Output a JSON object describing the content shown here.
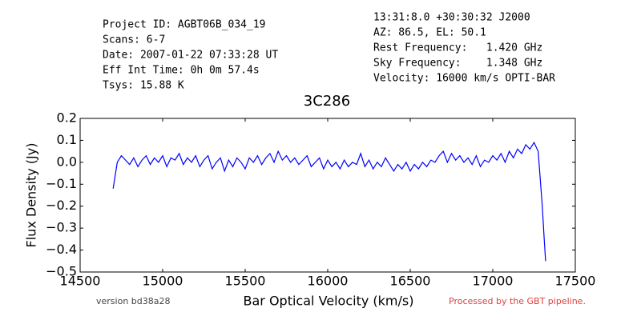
{
  "header": {
    "left": [
      "Project ID: AGBT06B_034_19",
      "Scans: 6-7",
      "Date: 2007-01-22 07:33:28 UT",
      "Eff Int Time: 0h 0m 57.4s",
      "Tsys: 15.88 K"
    ],
    "right": [
      "13:31:8.0 +30:30:32 J2000",
      "AZ: 86.5, EL: 50.1",
      "Rest Frequency:   1.420 GHz",
      "Sky Frequency:    1.348 GHz",
      "Velocity: 16000 km/s OPTI-BAR"
    ]
  },
  "footer": {
    "version": "version bd38a28",
    "pipeline": "Processed by the GBT pipeline."
  },
  "chart_data": {
    "type": "line",
    "title": "3C286",
    "x_label": "Bar Optical Velocity (km/s)",
    "y_label": "Flux Density (Jy)",
    "color": "#0000ff",
    "x": [
      14700,
      14725,
      14750,
      14775,
      14800,
      14825,
      14850,
      14875,
      14900,
      14925,
      14950,
      14975,
      15000,
      15025,
      15050,
      15075,
      15100,
      15125,
      15150,
      15175,
      15200,
      15225,
      15250,
      15275,
      15300,
      15325,
      15350,
      15375,
      15400,
      15425,
      15450,
      15475,
      15500,
      15525,
      15550,
      15575,
      15600,
      15625,
      15650,
      15675,
      15700,
      15725,
      15750,
      15775,
      15800,
      15825,
      15850,
      15875,
      15900,
      15925,
      15950,
      15975,
      16000,
      16025,
      16050,
      16075,
      16100,
      16125,
      16150,
      16175,
      16200,
      16225,
      16250,
      16275,
      16300,
      16325,
      16350,
      16375,
      16400,
      16425,
      16450,
      16475,
      16500,
      16525,
      16550,
      16575,
      16600,
      16625,
      16650,
      16675,
      16700,
      16725,
      16750,
      16775,
      16800,
      16825,
      16850,
      16875,
      16900,
      16925,
      16950,
      16975,
      17000,
      17025,
      17050,
      17075,
      17100,
      17125,
      17150,
      17175,
      17200,
      17225,
      17250,
      17275,
      17290,
      17300,
      17310,
      17320
    ],
    "values": [
      -0.12,
      0.0,
      0.03,
      0.01,
      -0.01,
      0.02,
      -0.02,
      0.01,
      0.03,
      -0.01,
      0.02,
      0.0,
      0.03,
      -0.02,
      0.02,
      0.01,
      0.04,
      -0.01,
      0.02,
      0.0,
      0.03,
      -0.02,
      0.01,
      0.03,
      -0.03,
      0.0,
      0.02,
      -0.04,
      0.01,
      -0.02,
      0.02,
      0.0,
      -0.03,
      0.02,
      0.0,
      0.03,
      -0.01,
      0.02,
      0.04,
      0.0,
      0.05,
      0.01,
      0.03,
      0.0,
      0.02,
      -0.01,
      0.01,
      0.03,
      -0.02,
      0.0,
      0.02,
      -0.03,
      0.01,
      -0.02,
      0.0,
      -0.03,
      0.01,
      -0.02,
      0.0,
      -0.01,
      0.04,
      -0.02,
      0.01,
      -0.03,
      0.0,
      -0.02,
      0.02,
      -0.01,
      -0.04,
      -0.01,
      -0.03,
      0.0,
      -0.04,
      -0.01,
      -0.03,
      0.0,
      -0.02,
      0.01,
      0.0,
      0.03,
      0.05,
      0.0,
      0.04,
      0.01,
      0.03,
      0.0,
      0.02,
      -0.01,
      0.03,
      -0.02,
      0.01,
      0.0,
      0.03,
      0.01,
      0.04,
      0.0,
      0.05,
      0.02,
      0.06,
      0.04,
      0.08,
      0.06,
      0.09,
      0.05,
      -0.1,
      -0.2,
      -0.33,
      -0.45
    ],
    "xlim": [
      14500,
      17500
    ],
    "xticks": [
      14500,
      15000,
      15500,
      16000,
      16500,
      17000,
      17500
    ],
    "ylim": [
      -0.5,
      0.2
    ],
    "yticks": [
      {
        "value": -0.5,
        "label": "−0.5"
      },
      {
        "value": -0.4,
        "label": "−0.4"
      },
      {
        "value": -0.3,
        "label": "−0.3"
      },
      {
        "value": -0.2,
        "label": "−0.2"
      },
      {
        "value": -0.1,
        "label": "−0.1"
      },
      {
        "value": 0.0,
        "label": "0.0"
      },
      0.1,
      0.2
    ],
    "grid": false
  }
}
